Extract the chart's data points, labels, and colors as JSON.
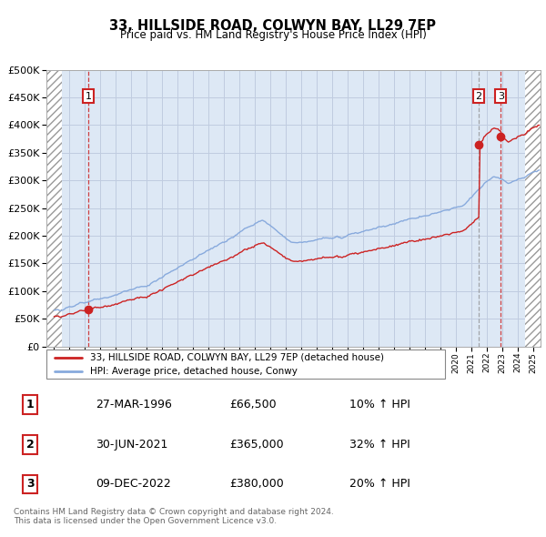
{
  "title": "33, HILLSIDE ROAD, COLWYN BAY, LL29 7EP",
  "subtitle": "Price paid vs. HM Land Registry's House Price Index (HPI)",
  "ylim": [
    0,
    500000
  ],
  "yticks": [
    0,
    50000,
    100000,
    150000,
    200000,
    250000,
    300000,
    350000,
    400000,
    450000,
    500000
  ],
  "price_paid_color": "#cc2222",
  "hpi_color": "#88aadd",
  "background_color": "#dde8f5",
  "grid_color": "#c0cce0",
  "annotation_box_color": "#cc2222",
  "vline1_color": "#cc2222",
  "vline2_color": "#888888",
  "vline3_color": "#cc2222",
  "transaction1": {
    "date": "27-MAR-1996",
    "price": 66500,
    "pct": "10%",
    "label": "1",
    "year": 1996.21
  },
  "transaction2": {
    "date": "30-JUN-2021",
    "price": 365000,
    "pct": "32%",
    "label": "2",
    "year": 2021.5
  },
  "transaction3": {
    "date": "09-DEC-2022",
    "price": 380000,
    "pct": "20%",
    "label": "3",
    "year": 2022.92
  },
  "legend_line1": "33, HILLSIDE ROAD, COLWYN BAY, LL29 7EP (detached house)",
  "legend_line2": "HPI: Average price, detached house, Conwy",
  "footnote": "Contains HM Land Registry data © Crown copyright and database right 2024.\nThis data is licensed under the Open Government Licence v3.0.",
  "xlim_start": 1993.5,
  "xlim_end": 2025.5,
  "hatch_left_end": 1994.5,
  "hatch_right_start": 2024.5
}
